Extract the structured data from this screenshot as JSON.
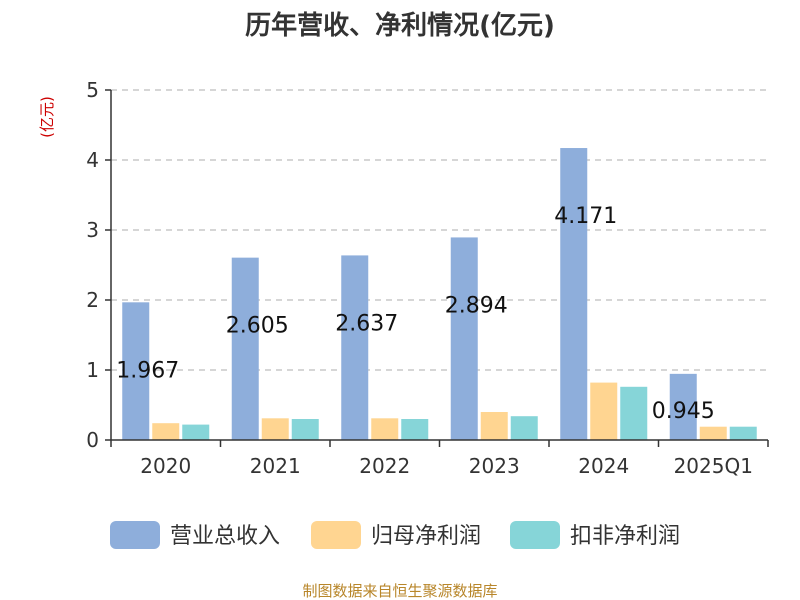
{
  "chart_data": {
    "type": "bar",
    "title": "历年营收、净利情况(亿元)",
    "unit_label": "(亿元)",
    "categories": [
      "2020",
      "2021",
      "2022",
      "2023",
      "2024",
      "2025Q1"
    ],
    "series": [
      {
        "name": "营业总收入",
        "color": "#8eaedb",
        "values": [
          1.967,
          2.605,
          2.637,
          2.894,
          4.171,
          0.945
        ]
      },
      {
        "name": "归母净利润",
        "color": "#ffd591",
        "values": [
          0.24,
          0.31,
          0.31,
          0.4,
          0.82,
          0.19
        ]
      },
      {
        "name": "扣非净利润",
        "color": "#86d5d8",
        "values": [
          0.22,
          0.3,
          0.3,
          0.34,
          0.76,
          0.19
        ]
      }
    ],
    "data_labels": [
      "1.967",
      "2.605",
      "2.637",
      "2.894",
      "4.171",
      "0.945"
    ],
    "ylim": [
      0,
      5
    ],
    "yticks": [
      "0",
      "1",
      "2",
      "3",
      "4",
      "5"
    ],
    "grid": true,
    "legend_position": "bottom"
  },
  "source_text": "制图数据来自恒生聚源数据库"
}
